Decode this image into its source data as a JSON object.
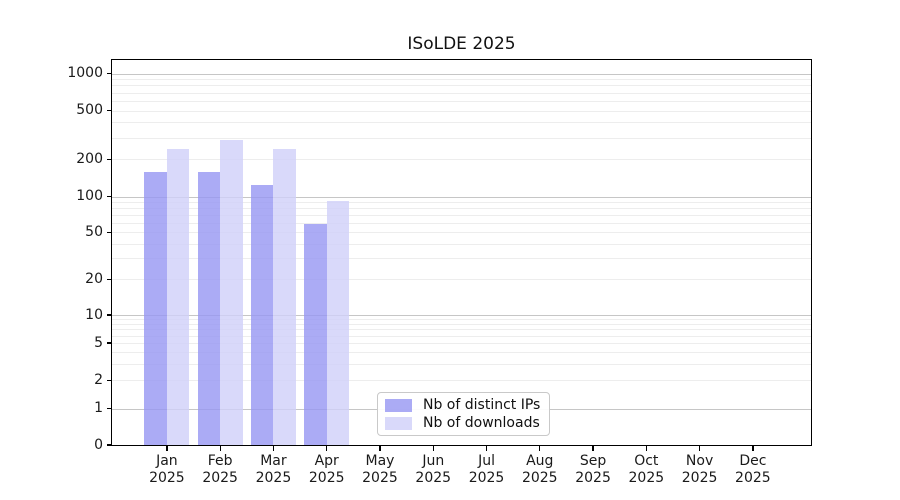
{
  "title": "ISoLDE 2025",
  "chart_data": {
    "type": "bar",
    "title": "ISoLDE 2025",
    "x_axis": {
      "months": [
        "Jan",
        "Feb",
        "Mar",
        "Apr",
        "May",
        "Jun",
        "Jul",
        "Aug",
        "Sep",
        "Oct",
        "Nov",
        "Dec"
      ],
      "year": "2025"
    },
    "y_axis": {
      "scale": "symlog",
      "tick_values": [
        1000,
        500,
        200,
        100,
        50,
        20,
        10,
        5,
        2,
        1,
        0
      ],
      "tick_labels": [
        "1000",
        "500",
        "200",
        "100",
        "50",
        "20",
        "10",
        "5",
        "2",
        "1",
        "0"
      ],
      "ylim": [
        0,
        1200
      ]
    },
    "series": [
      {
        "name": "Nb of distinct IPs",
        "color": "#9696f3",
        "fill_opacity": 0.8,
        "values": [
          157,
          157,
          125,
          59,
          0,
          0,
          0,
          0,
          0,
          0,
          0,
          0
        ]
      },
      {
        "name": "Nb of downloads",
        "color": "#d0d0f9",
        "fill_opacity": 0.8,
        "values": [
          245,
          290,
          245,
          91,
          0,
          0,
          0,
          0,
          0,
          0,
          0,
          0
        ]
      }
    ],
    "legend": {
      "position": "lower-center",
      "items": [
        "Nb of distinct IPs",
        "Nb of downloads"
      ]
    },
    "grid": {
      "major_color": "#c6c6c6",
      "minor_color": "#ededed",
      "spine_color": "#000000",
      "text_color": "#1a1a1a"
    }
  }
}
